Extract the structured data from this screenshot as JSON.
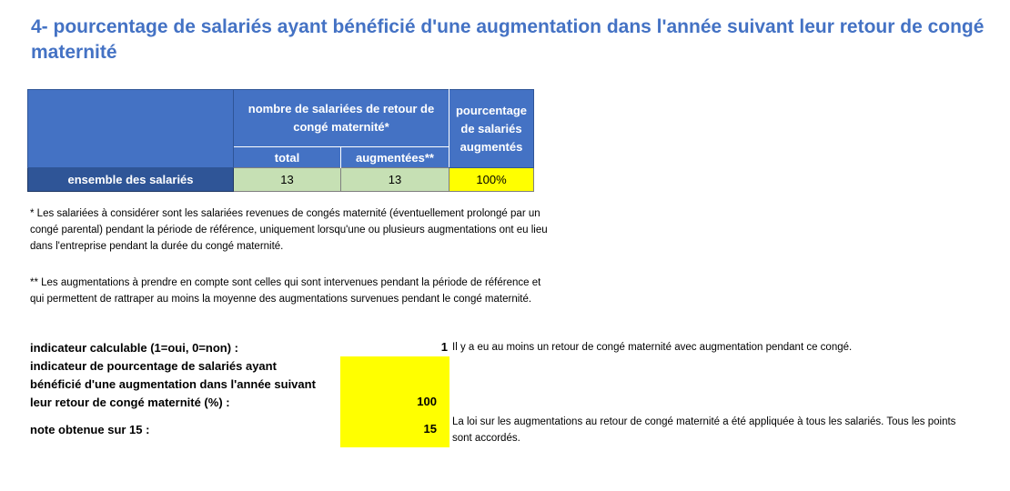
{
  "title": "4- pourcentage de salariés ayant bénéficié d'une augmentation dans l'année suivant leur retour de congé maternité",
  "table": {
    "group_header": "nombre de salariées de retour de congé maternité*",
    "pct_header": "pourcentage de salariés augmentés",
    "sub_total": "total",
    "sub_augmentees": "augmentées**",
    "row_label": "ensemble des salariés",
    "total": "13",
    "augmentees": "13",
    "pourcentage": "100%"
  },
  "notes": {
    "note1": "* Les salariées à considérer sont les salariées revenues de congés maternité (éventuellement prolongé par un congé parental) pendant la période de référence, uniquement lorsqu'une ou plusieurs augmentations ont eu lieu dans l'entreprise pendant la durée du congé maternité.",
    "note2": "** Les augmentations à prendre en compte sont celles qui sont intervenues pendant la période de référence et qui permettent de rattraper au moins la moyenne des augmentations survenues pendant le congé maternité."
  },
  "indicators": {
    "calculable_label": "indicateur calculable (1=oui, 0=non) :",
    "calculable_value": "1",
    "calculable_comment": "Il y a eu au moins un retour de congé maternité avec augmentation pendant ce congé.",
    "pct_label_line1": "indicateur de pourcentage de salariés ayant",
    "pct_label_line2": "bénéficié d'une augmentation dans l'année suivant",
    "pct_label_line3": "leur retour de congé maternité (%) :",
    "pct_value": "100",
    "note_label": "note obtenue sur 15 :",
    "note_value": "15",
    "note_comment": "La loi sur les augmentations au retour de congé maternité a été appliquée à tous les salariés. Tous les points sont accordés."
  },
  "colors": {
    "title_blue": "#4472c4",
    "header_blue": "#4472c4",
    "row_dark_blue": "#2f5597",
    "cell_green": "#c6e0b4",
    "highlight_yellow": "#ffff00"
  }
}
